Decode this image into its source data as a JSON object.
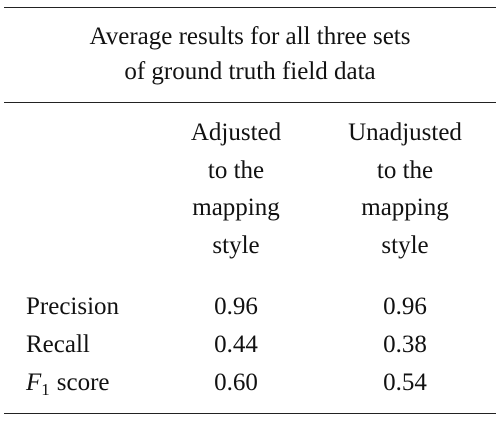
{
  "table": {
    "title": [
      "Average results for all three sets",
      "of ground truth field data"
    ],
    "columns": [
      [
        "Adjusted",
        "to the",
        "mapping",
        "style"
      ],
      [
        "Unadjusted",
        "to the",
        "mapping",
        "style"
      ]
    ],
    "rows": [
      {
        "label": [
          "Precision"
        ],
        "values": [
          "0.96",
          "0.96"
        ]
      },
      {
        "label": [
          "Recall"
        ],
        "values": [
          "0.44",
          "0.38"
        ]
      },
      {
        "label": [
          "F",
          "1",
          "score"
        ],
        "values": [
          "0.60",
          "0.54"
        ]
      }
    ]
  }
}
